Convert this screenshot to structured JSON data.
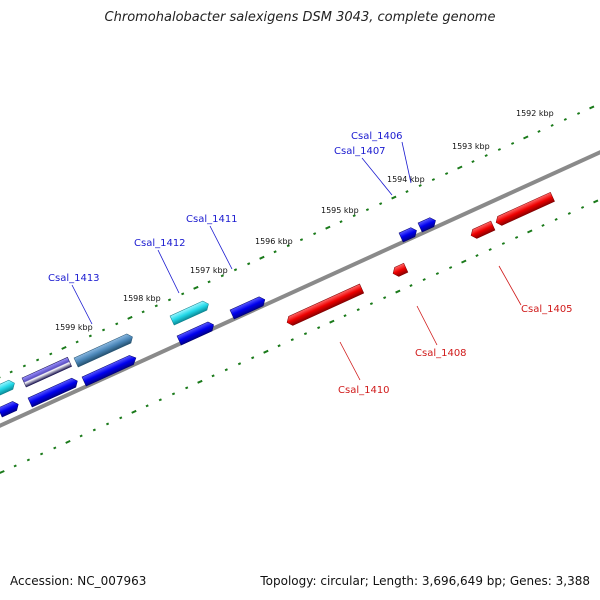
{
  "title": "Chromohalobacter salexigens DSM 3043, complete genome",
  "footer": {
    "accession": "Accession: NC_007963",
    "summary": "Topology: circular; Length: 3,696,649 bp; Genes: 3,388"
  },
  "colors": {
    "forward_gene": "#0000ee",
    "reverse_gene": "#ee0000",
    "cyan_gene": "#22d8e8",
    "steelblue_gene": "#4a86b8",
    "purple_gene": "#5a4ec0",
    "backbone": "#8a8a8a",
    "ticks": "#1a7a1a",
    "forward_label": "#1a1ad0",
    "reverse_label": "#d01a1a"
  },
  "scale_labels": [
    "1592 kbp",
    "1593 kbp",
    "1594 kbp",
    "1595 kbp",
    "1596 kbp",
    "1597 kbp",
    "1598 kbp",
    "1599 kbp"
  ],
  "forward_gene_labels": [
    "Csal_1406",
    "Csal_1407",
    "Csal_1411",
    "Csal_1412",
    "Csal_1413"
  ],
  "reverse_gene_labels": [
    "Csal_1405",
    "Csal_1408",
    "Csal_1410"
  ]
}
